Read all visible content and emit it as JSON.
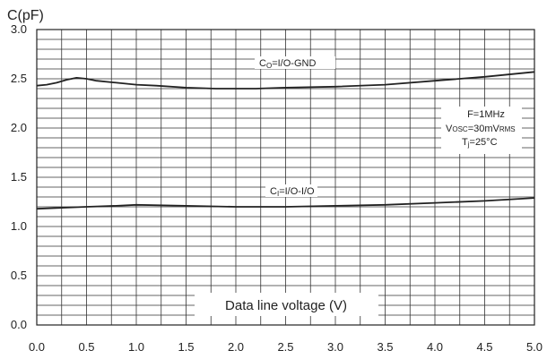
{
  "chart_data": {
    "type": "line",
    "ylabel": "C(pF)",
    "xlabel": "Data line voltage (V)",
    "xlim": [
      0,
      5
    ],
    "ylim": [
      0,
      3
    ],
    "x_ticks": [
      "0.0",
      "0.5",
      "1.0",
      "1.5",
      "2.0",
      "2.5",
      "3.0",
      "3.5",
      "4.0",
      "4.5",
      "5.0"
    ],
    "y_ticks": [
      "0.0",
      "0.5",
      "1.0",
      "1.5",
      "2.0",
      "2.5",
      "3.0"
    ],
    "grid": {
      "x_step": 0.25,
      "y_step": 0.1
    },
    "conditions": {
      "line1": "F=1MHz",
      "line2_main": "V",
      "line2_sub": "OSC",
      "line2_rest": "=30mV",
      "line2_sub2": "RMS",
      "line3_main": "T",
      "line3_sub": "j",
      "line3_rest": "=25°C"
    },
    "series": [
      {
        "label_main": "C",
        "label_sub": "O",
        "label_rest": "=I/O-GND",
        "color": "#222222",
        "x": [
          0.0,
          0.1,
          0.2,
          0.3,
          0.4,
          0.5,
          0.6,
          0.8,
          1.0,
          1.2,
          1.5,
          1.8,
          2.0,
          2.2,
          2.5,
          3.0,
          3.5,
          4.0,
          4.5,
          5.0
        ],
        "y": [
          2.43,
          2.44,
          2.46,
          2.49,
          2.51,
          2.5,
          2.48,
          2.46,
          2.44,
          2.43,
          2.41,
          2.4,
          2.4,
          2.4,
          2.41,
          2.42,
          2.44,
          2.48,
          2.52,
          2.57
        ]
      },
      {
        "label_main": "C",
        "label_sub": "I",
        "label_rest": "=I/O-I/O",
        "color": "#222222",
        "x": [
          0.0,
          0.5,
          0.8,
          1.0,
          1.5,
          2.0,
          2.5,
          3.0,
          3.5,
          4.0,
          4.5,
          5.0
        ],
        "y": [
          1.18,
          1.2,
          1.21,
          1.22,
          1.21,
          1.2,
          1.2,
          1.21,
          1.22,
          1.24,
          1.26,
          1.29
        ]
      }
    ]
  }
}
